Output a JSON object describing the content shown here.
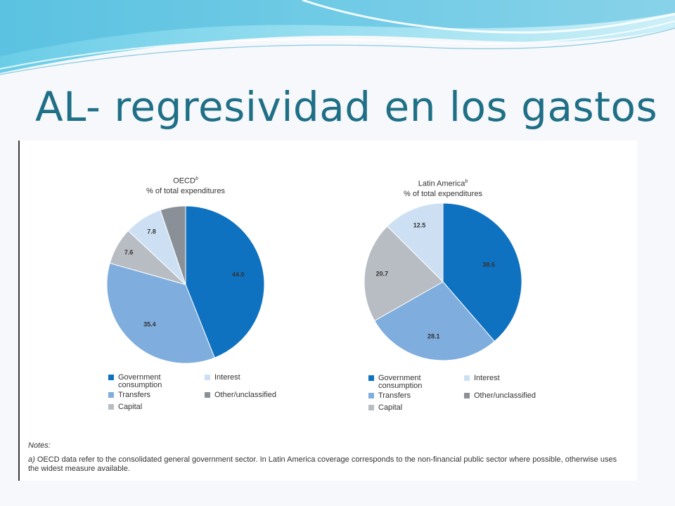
{
  "slide": {
    "title": "AL- regresividad en los gastos"
  },
  "colors": {
    "government_consumption": "#0f72c0",
    "transfers": "#7eadde",
    "capital": "#b8bcc3",
    "interest": "#cde0f3",
    "other_unclassified": "#8a9097",
    "title": "#1f6f86"
  },
  "charts": [
    {
      "title": "OECD",
      "title_marker": "b",
      "subtitle": "% of total expenditures"
    },
    {
      "title": "Latin America",
      "title_marker": "b",
      "subtitle": "% of total expenditures"
    }
  ],
  "legend": {
    "government_consumption": "Government consumption",
    "interest": "Interest",
    "transfers": "Transfers",
    "other_unclassified": "Other/unclassified",
    "capital": "Capital"
  },
  "notes": {
    "title": "Notes:",
    "a_marker": "a)",
    "a_text": "OECD data refer to the consolidated general government sector. In Latin America coverage corresponds to the non-financial public sector where possible, otherwise uses the widest measure available."
  },
  "chart_data": [
    {
      "type": "pie",
      "title": "OECD",
      "subtitle": "% of total expenditures",
      "categories": [
        "Government consumption",
        "Transfers",
        "Capital",
        "Interest",
        "Other/unclassified"
      ],
      "values": [
        44.0,
        35.4,
        7.6,
        7.8,
        5.2
      ],
      "labels": [
        "44.0",
        "35.4",
        "7.6",
        "7.8",
        ""
      ],
      "colors": [
        "#0f72c0",
        "#7eadde",
        "#b8bcc3",
        "#cde0f3",
        "#8a9097"
      ]
    },
    {
      "type": "pie",
      "title": "Latin America",
      "subtitle": "% of total expenditures",
      "categories": [
        "Government consumption",
        "Transfers",
        "Capital",
        "Interest"
      ],
      "values": [
        38.6,
        28.1,
        20.7,
        12.5
      ],
      "labels": [
        "38.6",
        "28.1",
        "20.7",
        "12.5"
      ],
      "colors": [
        "#0f72c0",
        "#7eadde",
        "#b8bcc3",
        "#cde0f3"
      ]
    }
  ]
}
